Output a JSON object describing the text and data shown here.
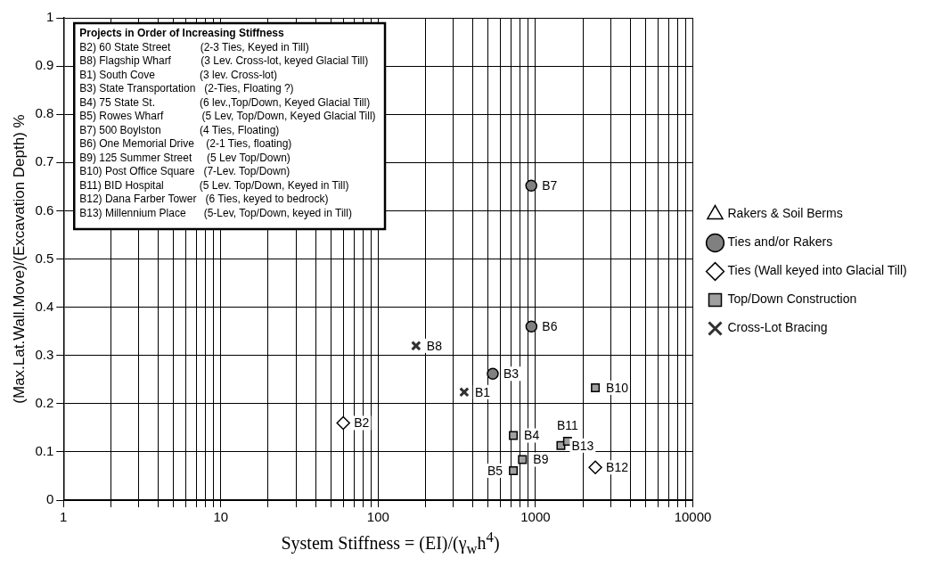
{
  "chart_data": {
    "type": "scatter",
    "xlabel": "System Stiffness = (EI)/(γ$_{w}$h$^{4}$)",
    "ylabel": "(Max.Lat.Wall.Move)/(Excavation Depth) %",
    "log": "x",
    "xlim": [
      1,
      10000
    ],
    "xticks": [
      1,
      {
        "value": 2,
        "label": null
      },
      {
        "value": 3,
        "label": null
      },
      {
        "value": 4,
        "label": null
      },
      {
        "value": 5,
        "label": null
      },
      {
        "value": 6,
        "label": null
      },
      {
        "value": 7,
        "label": null
      },
      {
        "value": 8,
        "label": null
      },
      {
        "value": 9,
        "label": null
      },
      10,
      {
        "value": 20,
        "label": null
      },
      {
        "value": 30,
        "label": null
      },
      {
        "value": 40,
        "label": null
      },
      {
        "value": 50,
        "label": null
      },
      {
        "value": 60,
        "label": null
      },
      {
        "value": 70,
        "label": null
      },
      {
        "value": 80,
        "label": null
      },
      {
        "value": 90,
        "label": null
      },
      100,
      {
        "value": 200,
        "label": null
      },
      {
        "value": 300,
        "label": null
      },
      {
        "value": 400,
        "label": null
      },
      {
        "value": 500,
        "label": null
      },
      {
        "value": 600,
        "label": null
      },
      {
        "value": 700,
        "label": null
      },
      {
        "value": 800,
        "label": null
      },
      {
        "value": 900,
        "label": null
      },
      1000,
      {
        "value": 2000,
        "label": null
      },
      {
        "value": 3000,
        "label": null
      },
      {
        "value": 4000,
        "label": null
      },
      {
        "value": 5000,
        "label": null
      },
      {
        "value": 6000,
        "label": null
      },
      {
        "value": 7000,
        "label": null
      },
      {
        "value": 8000,
        "label": null
      },
      {
        "value": 9000,
        "label": null
      },
      10000
    ],
    "ylim": [
      0,
      1
    ],
    "yticks": [
      0,
      0.1,
      0.2,
      0.3,
      0.4,
      0.5,
      0.6,
      0.7,
      0.8,
      0.9,
      1
    ],
    "grid": true,
    "legend": "right",
    "series": [
      {
        "name": "Rakers & Soil Berms",
        "color": "#ffffff",
        "marker": "triangle"
      },
      {
        "name": "Ties and/or Rakers",
        "color": "#808080",
        "marker": "circle",
        "x": [
          535,
          942,
          940
        ],
        "values": [
          0.262,
          0.36,
          0.652
        ],
        "value_labels": [
          "B3",
          "B6",
          "B7"
        ]
      },
      {
        "name": "Ties (Wall keyed into Glacial Till)",
        "color": "#ffffff",
        "marker": "diamond",
        "x": [
          60,
          2400
        ],
        "values": [
          0.16,
          0.068
        ],
        "value_labels": [
          "B2",
          "B12"
        ]
      },
      {
        "name": "Top/Down Construction",
        "color": "#a0a0a0",
        "marker": "square",
        "x": [
          723,
          723,
          826,
          1450,
          1597,
          2400
        ],
        "values": [
          0.134,
          0.061,
          0.084,
          0.113,
          0.122,
          0.233
        ],
        "value_labels": [
          "B4",
          "B5",
          "B9",
          "B13",
          "B11",
          "B10"
        ]
      },
      {
        "name": "Cross-Lot Bracing",
        "color": "#303030",
        "marker": "cross",
        "x": [
          174,
          352
        ],
        "values": [
          0.32,
          0.224
        ],
        "value_labels": [
          "B8",
          "B1"
        ]
      }
    ],
    "annotations": [
      "Projects in Order of Increasing Stiffness",
      "B2) 60 State Street          (2-3 Ties, Keyed in Till)",
      "B8) Flagship Wharf          (3 Lev. Cross-lot, keyed Glacial Till)",
      "B1) South Cove               (3 lev. Cross-lot)",
      "B3) State Transportation   (2-Ties, Floating ?)",
      "B4) 75 State St.               (6 lev.,Top/Down, Keyed Glacial Till)",
      "B5) Rowes Wharf             (5 Lev, Top/Down, Keyed Glacial Till)",
      "B7) 500 Boylston             (4 Ties, Floating)",
      "B6) One Memorial Drive    (2-1 Ties, floating)",
      "B9) 125 Summer Street     (5 Lev Top/Down)",
      "B10) Post Office Square   (7-Lev. Top/Down)",
      "B11) BID Hospital            (5 Lev. Top/Down, Keyed in Till)",
      "B12) Dana Farber Tower   (6 Ties, keyed to bedrock)",
      "B13) Millennium Place      (5-Lev, Top/Down, keyed in Till)"
    ]
  }
}
